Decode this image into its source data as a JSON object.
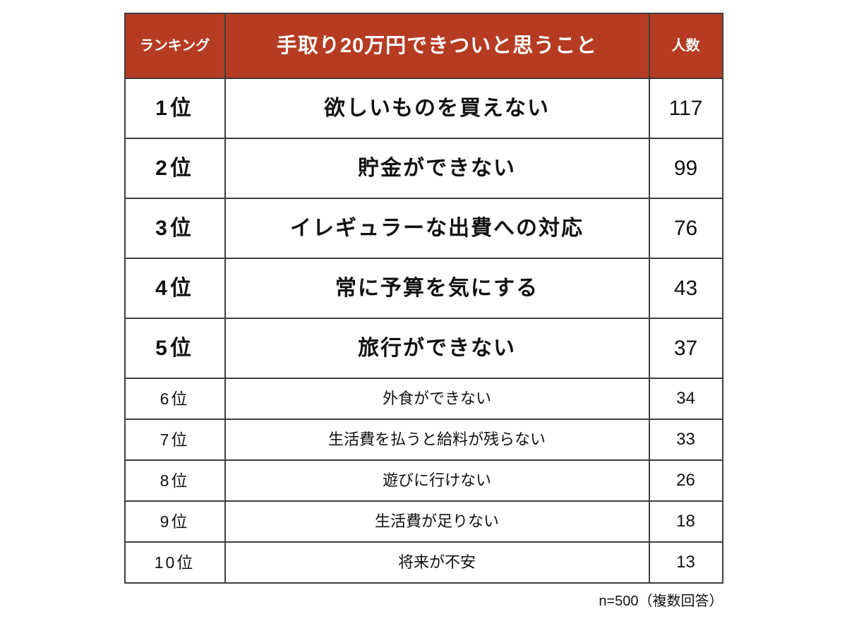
{
  "colors": {
    "header_bg": "#b53c22",
    "header_text": "#ffffff",
    "border_color": "#3f3f3f"
  },
  "chart_data": {
    "type": "table",
    "title": "手取り20万円できついと思うこと",
    "header": {
      "rank": "ランキング",
      "title": "手取り20万円できついと思うこと",
      "count": "人数"
    },
    "rows": [
      {
        "rank": "1位",
        "label": "欲しいものを買えない",
        "count": 117,
        "emphasis": true
      },
      {
        "rank": "2位",
        "label": "貯金ができない",
        "count": 99,
        "emphasis": true
      },
      {
        "rank": "3位",
        "label": "イレギュラーな出費への対応",
        "count": 76,
        "emphasis": true
      },
      {
        "rank": "4位",
        "label": "常に予算を気にする",
        "count": 43,
        "emphasis": true
      },
      {
        "rank": "5位",
        "label": "旅行ができない",
        "count": 37,
        "emphasis": true
      },
      {
        "rank": "6位",
        "label": "外食ができない",
        "count": 34,
        "emphasis": false
      },
      {
        "rank": "7位",
        "label": "生活費を払うと給料が残らない",
        "count": 33,
        "emphasis": false
      },
      {
        "rank": "8位",
        "label": "遊びに行けない",
        "count": 26,
        "emphasis": false
      },
      {
        "rank": "9位",
        "label": "生活費が足りない",
        "count": 18,
        "emphasis": false
      },
      {
        "rank": "10位",
        "label": "将来が不安",
        "count": 13,
        "emphasis": false
      }
    ],
    "note": "n=500（複数回答）"
  }
}
